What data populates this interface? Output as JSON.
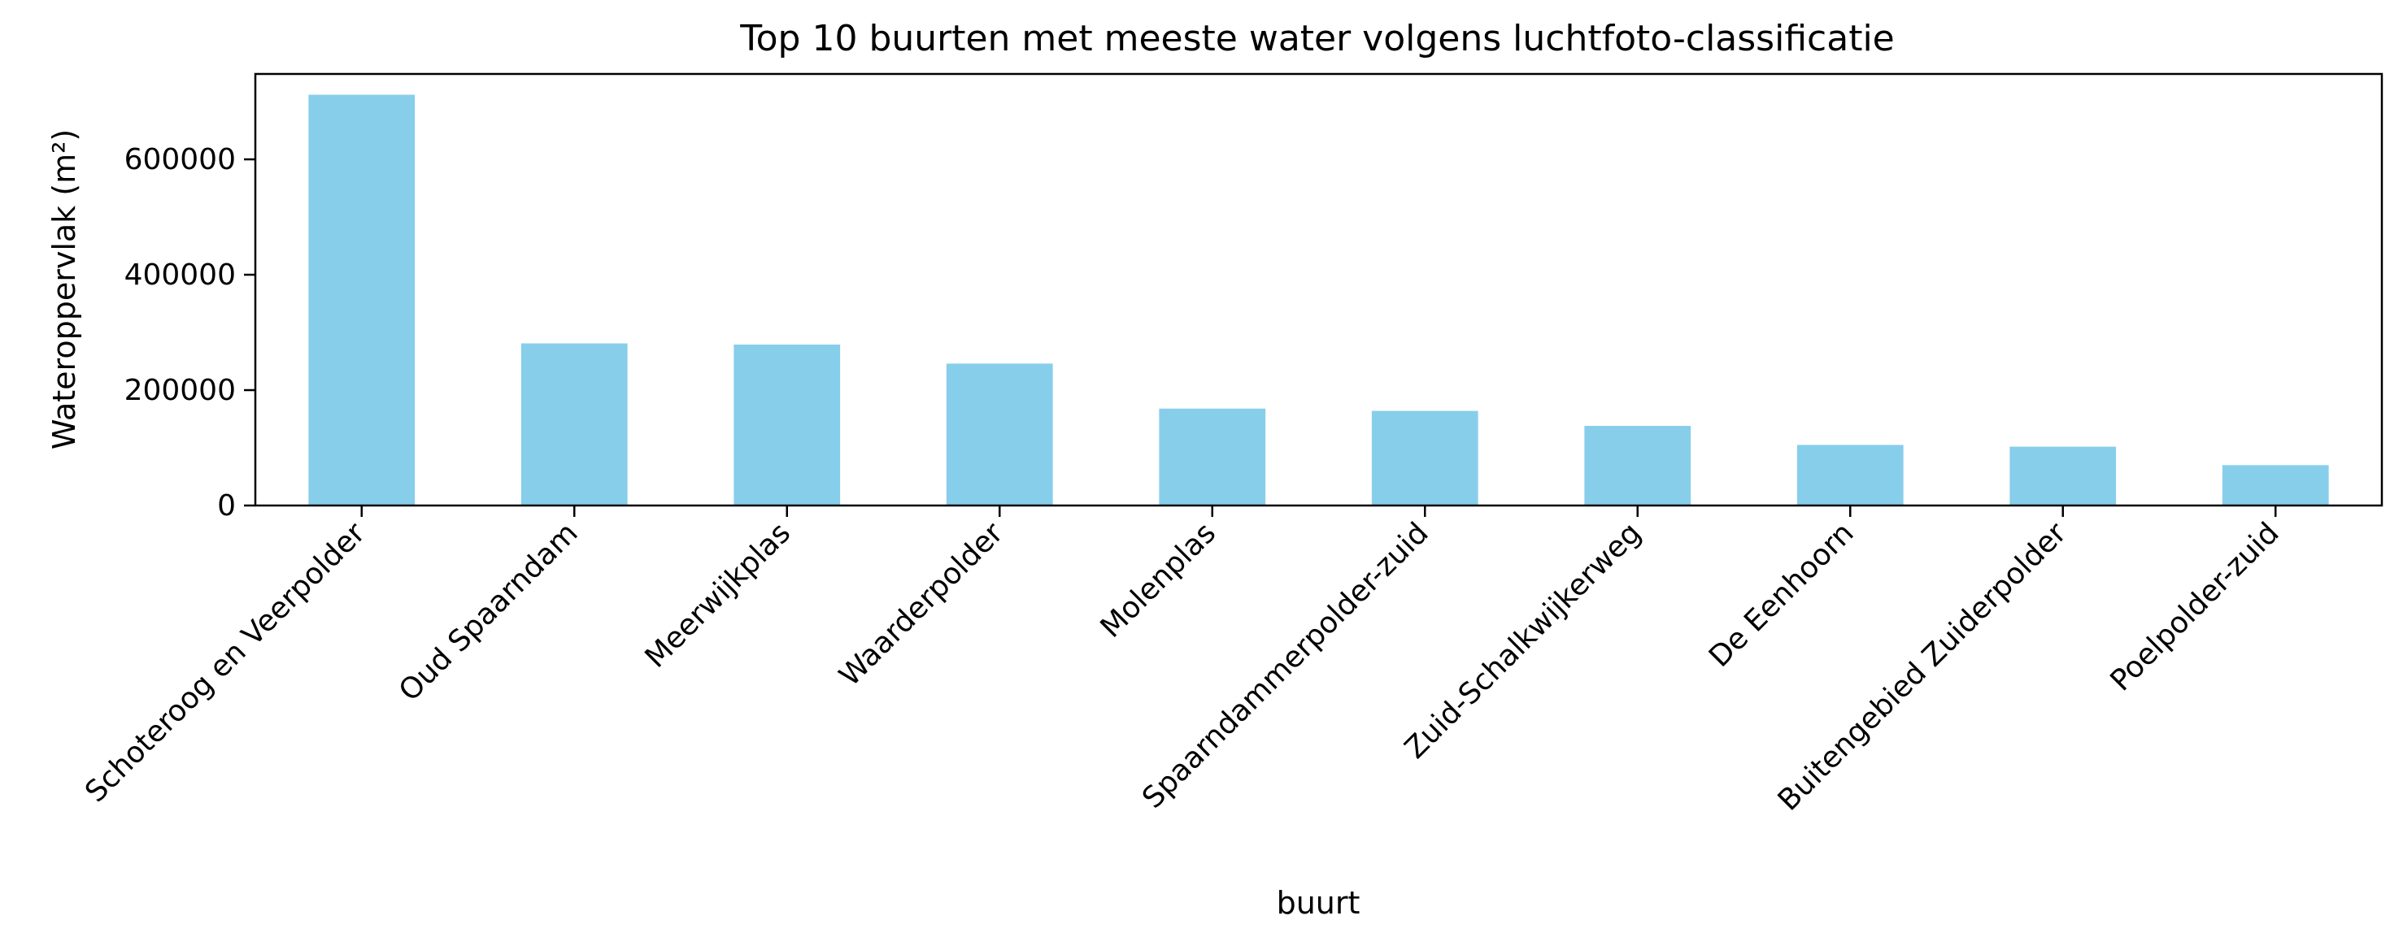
{
  "chart_data": {
    "type": "bar",
    "title": "Top 10 buurten met meeste water volgens luchtfoto-classificatie",
    "xlabel": "buurt",
    "ylabel": "Wateroppervlak (m²)",
    "categories": [
      "Schoteroog en Veerpolder",
      "Oud Spaarndam",
      "Meerwijkplas",
      "Waarderpolder",
      "Molenplas",
      "Spaarndammerpolder-zuid",
      "Zuid-Schalkwijkerweg",
      "De Eenhoorn",
      "Buitengebied Zuiderpolder",
      "Poelpolder-zuid"
    ],
    "values": [
      712000,
      281000,
      279000,
      246000,
      168000,
      164000,
      138000,
      105000,
      102000,
      70000
    ],
    "ylim": [
      0,
      748000
    ],
    "yticks": [
      0,
      200000,
      400000,
      600000
    ],
    "ytick_labels": [
      "0",
      "200000",
      "400000",
      "600000"
    ],
    "grid": false,
    "bar_color": "#87ceeb"
  }
}
